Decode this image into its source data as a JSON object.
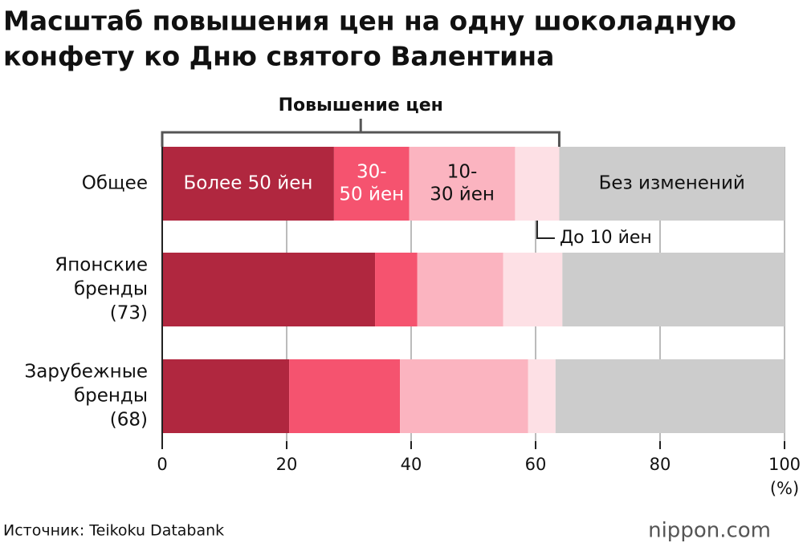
{
  "chart_data": {
    "type": "stacked-barh",
    "title": [
      "Масштаб повышения цен на одну шоколадную",
      "конфету ко Дню святого Валентина"
    ],
    "annotation": "Повышение цен",
    "categories": [
      [
        "Общее"
      ],
      [
        "Японские",
        "бренды",
        "(73)"
      ],
      [
        "Зарубежные",
        "бренды",
        "(68)"
      ]
    ],
    "series": [
      {
        "name": [
          "Более 50 йен"
        ],
        "color": "#b0273f",
        "values": [
          27.6,
          34.2,
          20.4
        ]
      },
      {
        "name": [
          "30-",
          "50 йен"
        ],
        "color": "#f5536f",
        "values": [
          12.1,
          6.8,
          17.8
        ]
      },
      {
        "name": [
          "10-",
          "30 йен"
        ],
        "color": "#fbb4c0",
        "values": [
          17.0,
          13.8,
          20.6
        ]
      },
      {
        "name": [
          "До 10 йен"
        ],
        "color": "#fde0e5",
        "values": [
          7.1,
          9.5,
          4.4
        ]
      },
      {
        "name": [
          "Без изменений"
        ],
        "color": "#cccccc",
        "values": [
          36.2,
          35.7,
          36.8
        ]
      }
    ],
    "xlim": [
      0,
      100
    ],
    "xticks": [
      0,
      20,
      40,
      60,
      80,
      100
    ],
    "x_unit": "(%)",
    "grid": true,
    "source": "Источник: Teikoku Databank",
    "logo": "nippon.com"
  }
}
